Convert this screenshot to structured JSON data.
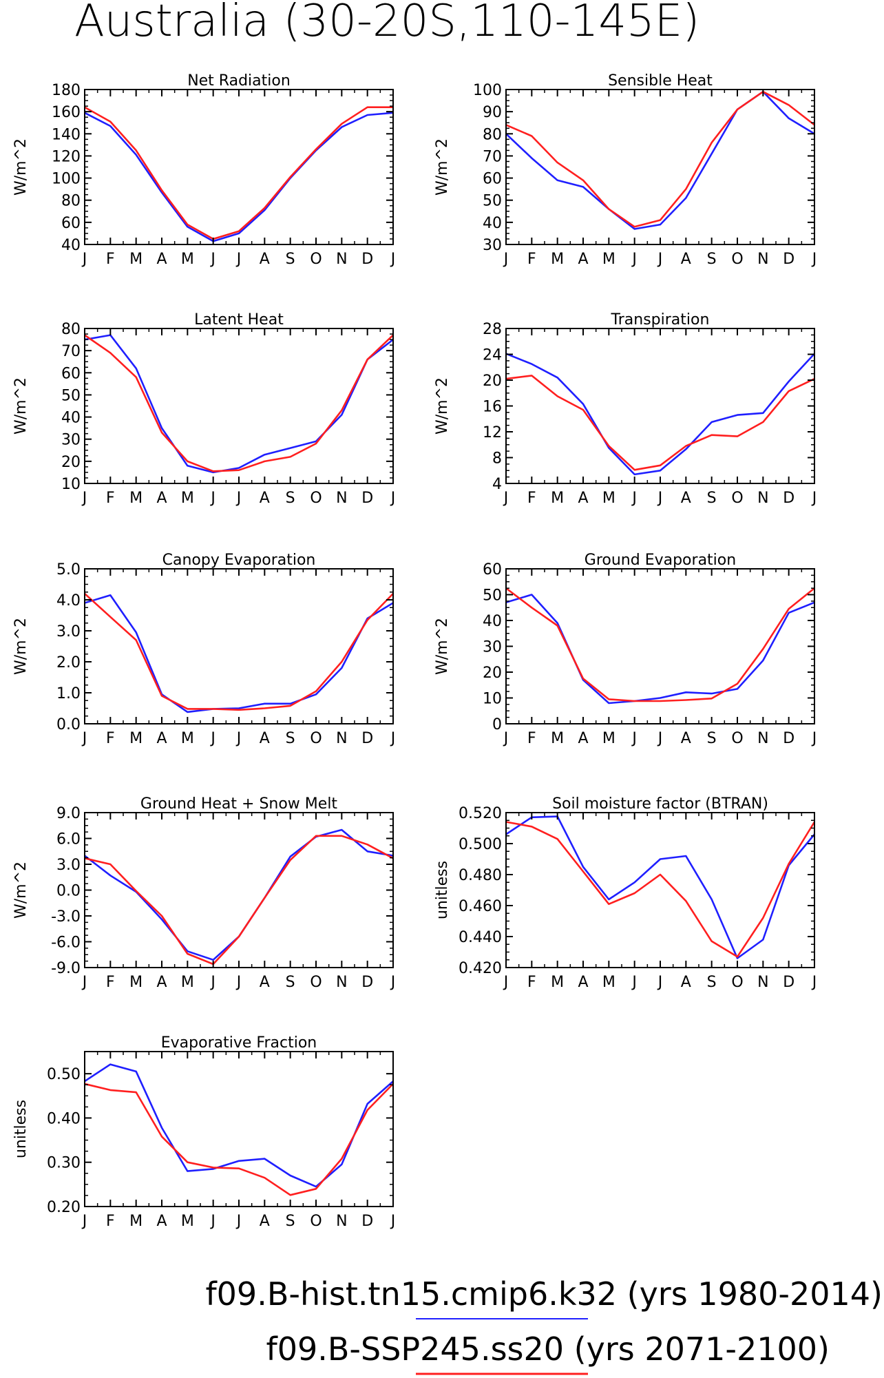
{
  "figure": {
    "title": "Australia (30-20S,110-145E)"
  },
  "legend": [
    {
      "label": "f09.B-hist.tn15.cmip6.k32 (yrs 1980-2014)",
      "color": "#1f1fff"
    },
    {
      "label": "f09.B-SSP245.ss20 (yrs 2071-2100)",
      "color": "#ff1f1f"
    }
  ],
  "chart_data": [
    {
      "type": "line",
      "title": "Net Radiation",
      "ylabel": "W/m^2",
      "ylim": [
        40,
        180
      ],
      "yticks": [
        40,
        60,
        80,
        100,
        120,
        140,
        160,
        180
      ],
      "ytick_labels": [
        "40",
        "60",
        "80",
        "100",
        "120",
        "140",
        "160",
        "180"
      ],
      "categories": [
        "J",
        "F",
        "M",
        "A",
        "M",
        "J",
        "J",
        "A",
        "S",
        "O",
        "N",
        "D",
        "J"
      ],
      "series": [
        {
          "color": "#1f1fff",
          "values": [
            159,
            147,
            121,
            87,
            56,
            43,
            50,
            71,
            100,
            125,
            146,
            157,
            159
          ]
        },
        {
          "color": "#ff1f1f",
          "values": [
            164,
            151,
            125,
            89,
            58,
            45,
            52,
            73,
            101,
            126,
            149,
            164,
            164
          ]
        }
      ]
    },
    {
      "type": "line",
      "title": "Sensible Heat",
      "ylabel": "W/m^2",
      "ylim": [
        30,
        100
      ],
      "yticks": [
        30,
        40,
        50,
        60,
        70,
        80,
        90,
        100
      ],
      "ytick_labels": [
        "30",
        "40",
        "50",
        "60",
        "70",
        "80",
        "90",
        "100"
      ],
      "categories": [
        "J",
        "F",
        "M",
        "A",
        "M",
        "J",
        "J",
        "A",
        "S",
        "O",
        "N",
        "D",
        "J"
      ],
      "series": [
        {
          "color": "#1f1fff",
          "values": [
            80,
            69,
            59,
            56,
            46,
            37,
            39,
            51,
            71,
            91,
            99,
            87,
            80
          ]
        },
        {
          "color": "#ff1f1f",
          "values": [
            84,
            79,
            67,
            59,
            46,
            38,
            41,
            55,
            76,
            91,
            99,
            93,
            84
          ]
        }
      ]
    },
    {
      "type": "line",
      "title": "Latent Heat",
      "ylabel": "W/m^2",
      "ylim": [
        10,
        80
      ],
      "yticks": [
        10,
        20,
        30,
        40,
        50,
        60,
        70,
        80
      ],
      "ytick_labels": [
        "10",
        "20",
        "30",
        "40",
        "50",
        "60",
        "70",
        "80"
      ],
      "categories": [
        "J",
        "F",
        "M",
        "A",
        "M",
        "J",
        "J",
        "A",
        "S",
        "O",
        "N",
        "D",
        "J"
      ],
      "series": [
        {
          "color": "#1f1fff",
          "values": [
            75,
            77,
            62,
            35,
            18,
            15,
            17,
            23,
            26,
            29,
            41,
            66,
            75
          ]
        },
        {
          "color": "#ff1f1f",
          "values": [
            77,
            69,
            58,
            33,
            20,
            15.5,
            16,
            20,
            22,
            28,
            43,
            66,
            77
          ]
        }
      ]
    },
    {
      "type": "line",
      "title": "Transpiration",
      "ylabel": "W/m^2",
      "ylim": [
        4,
        28
      ],
      "yticks": [
        4,
        8,
        12,
        16,
        20,
        24,
        28
      ],
      "ytick_labels": [
        "4",
        "8",
        "12",
        "16",
        "20",
        "24",
        "28"
      ],
      "categories": [
        "J",
        "F",
        "M",
        "A",
        "M",
        "J",
        "J",
        "A",
        "S",
        "O",
        "N",
        "D",
        "J"
      ],
      "series": [
        {
          "color": "#1f1fff",
          "values": [
            24.1,
            22.5,
            20.4,
            16.3,
            9.5,
            5.4,
            6.0,
            9.3,
            13.5,
            14.6,
            14.9,
            19.8,
            24.1
          ]
        },
        {
          "color": "#ff1f1f",
          "values": [
            20.2,
            20.7,
            17.5,
            15.4,
            9.8,
            6.1,
            6.8,
            9.8,
            11.5,
            11.3,
            13.5,
            18.3,
            20.2
          ]
        }
      ]
    },
    {
      "type": "line",
      "title": "Canopy Evaporation",
      "ylabel": "W/m^2",
      "ylim": [
        0,
        5
      ],
      "yticks": [
        0,
        1,
        2,
        3,
        4,
        5
      ],
      "ytick_labels": [
        "0.0",
        "1.0",
        "2.0",
        "3.0",
        "4.0",
        "5.0"
      ],
      "categories": [
        "J",
        "F",
        "M",
        "A",
        "M",
        "J",
        "J",
        "A",
        "S",
        "O",
        "N",
        "D",
        "J"
      ],
      "series": [
        {
          "color": "#1f1fff",
          "values": [
            3.9,
            4.15,
            2.95,
            0.95,
            0.38,
            0.48,
            0.5,
            0.65,
            0.65,
            0.95,
            1.8,
            3.4,
            3.9
          ]
        },
        {
          "color": "#ff1f1f",
          "values": [
            4.2,
            3.45,
            2.7,
            0.9,
            0.48,
            0.48,
            0.45,
            0.5,
            0.58,
            1.05,
            2.0,
            3.35,
            4.2
          ]
        }
      ]
    },
    {
      "type": "line",
      "title": "Ground Evaporation",
      "ylabel": "W/m^2",
      "ylim": [
        0,
        60
      ],
      "yticks": [
        0,
        10,
        20,
        30,
        40,
        50,
        60
      ],
      "ytick_labels": [
        "0",
        "10",
        "20",
        "30",
        "40",
        "50",
        "60"
      ],
      "categories": [
        "J",
        "F",
        "M",
        "A",
        "M",
        "J",
        "J",
        "A",
        "S",
        "O",
        "N",
        "D",
        "J"
      ],
      "series": [
        {
          "color": "#1f1fff",
          "values": [
            47,
            50,
            39,
            17,
            8,
            8.8,
            10,
            12.2,
            11.7,
            13.5,
            24.5,
            43,
            47
          ]
        },
        {
          "color": "#ff1f1f",
          "values": [
            52.5,
            45,
            38,
            17.5,
            9.5,
            8.8,
            8.8,
            9.2,
            9.8,
            15.5,
            29,
            44.5,
            52.5
          ]
        }
      ]
    },
    {
      "type": "line",
      "title": "Ground Heat + Snow Melt",
      "ylabel": "W/m^2",
      "ylim": [
        -9,
        9
      ],
      "yticks": [
        -9,
        -6,
        -3,
        0,
        3,
        6,
        9
      ],
      "ytick_labels": [
        "-9.0",
        "-6.0",
        "-3.0",
        "0.0",
        "3.0",
        "6.0",
        "9.0"
      ],
      "categories": [
        "J",
        "F",
        "M",
        "A",
        "M",
        "J",
        "J",
        "A",
        "S",
        "O",
        "N",
        "D",
        "J"
      ],
      "series": [
        {
          "color": "#1f1fff",
          "values": [
            4.0,
            1.7,
            -0.2,
            -3.4,
            -7.1,
            -8.1,
            -5.4,
            -0.9,
            3.9,
            6.2,
            7.0,
            4.5,
            4.0
          ]
        },
        {
          "color": "#ff1f1f",
          "values": [
            3.7,
            3.0,
            -0.1,
            -3.0,
            -7.4,
            -8.6,
            -5.4,
            -0.9,
            3.5,
            6.3,
            6.3,
            5.3,
            3.7
          ]
        }
      ]
    },
    {
      "type": "line",
      "title": "Soil moisture factor (BTRAN)",
      "ylabel": "unitless",
      "ylim": [
        0.42,
        0.52
      ],
      "yticks": [
        0.42,
        0.44,
        0.46,
        0.48,
        0.5,
        0.52
      ],
      "ytick_labels": [
        "0.420",
        "0.440",
        "0.460",
        "0.480",
        "0.500",
        "0.520"
      ],
      "categories": [
        "J",
        "F",
        "M",
        "A",
        "M",
        "J",
        "J",
        "A",
        "S",
        "O",
        "N",
        "D",
        "J"
      ],
      "series": [
        {
          "color": "#1f1fff",
          "values": [
            0.506,
            0.517,
            0.5175,
            0.485,
            0.464,
            0.475,
            0.49,
            0.492,
            0.464,
            0.426,
            0.438,
            0.486,
            0.506
          ]
        },
        {
          "color": "#ff1f1f",
          "values": [
            0.514,
            0.511,
            0.503,
            0.482,
            0.461,
            0.468,
            0.48,
            0.463,
            0.437,
            0.427,
            0.452,
            0.487,
            0.514
          ]
        }
      ]
    },
    {
      "type": "line",
      "title": "Evaporative Fraction",
      "ylabel": "unitless",
      "ylim": [
        0.2,
        0.55
      ],
      "yticks": [
        0.2,
        0.3,
        0.4,
        0.5
      ],
      "ytick_labels": [
        "0.20",
        "0.30",
        "0.40",
        "0.50"
      ],
      "categories": [
        "J",
        "F",
        "M",
        "A",
        "M",
        "J",
        "J",
        "A",
        "S",
        "O",
        "N",
        "D",
        "J"
      ],
      "series": [
        {
          "color": "#1f1fff",
          "values": [
            0.483,
            0.521,
            0.505,
            0.378,
            0.28,
            0.285,
            0.303,
            0.308,
            0.27,
            0.245,
            0.295,
            0.432,
            0.483
          ]
        },
        {
          "color": "#ff1f1f",
          "values": [
            0.477,
            0.463,
            0.458,
            0.358,
            0.3,
            0.288,
            0.286,
            0.265,
            0.226,
            0.24,
            0.308,
            0.418,
            0.477
          ]
        }
      ]
    }
  ]
}
